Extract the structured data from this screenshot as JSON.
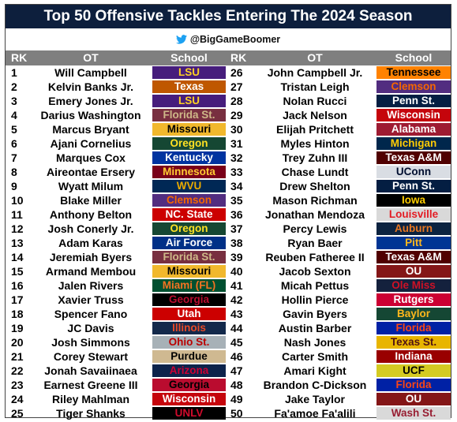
{
  "title": "Top 50 Offensive Tackles Entering The 2024 Season",
  "handle": "@BigGameBoomer",
  "headers": {
    "rank": "RK",
    "player": "OT",
    "school": "School"
  },
  "left": [
    {
      "rank": "1",
      "name": "Will Campbell",
      "school": "LSU",
      "bg": "#461D7C",
      "fg": "#FDD023"
    },
    {
      "rank": "2",
      "name": "Kelvin Banks Jr.",
      "school": "Texas",
      "bg": "#BF5700",
      "fg": "#FFFFFF"
    },
    {
      "rank": "3",
      "name": "Emery Jones Jr.",
      "school": "LSU",
      "bg": "#461D7C",
      "fg": "#FDD023"
    },
    {
      "rank": "4",
      "name": "Darius Washington",
      "school": "Florida St.",
      "bg": "#782F40",
      "fg": "#CEB888"
    },
    {
      "rank": "5",
      "name": "Marcus Bryant",
      "school": "Missouri",
      "bg": "#F1B82D",
      "fg": "#000000"
    },
    {
      "rank": "6",
      "name": "Ajani Cornelius",
      "school": "Oregon",
      "bg": "#154733",
      "fg": "#FEE123"
    },
    {
      "rank": "7",
      "name": "Marques Cox",
      "school": "Kentucky",
      "bg": "#0033A0",
      "fg": "#FFFFFF"
    },
    {
      "rank": "8",
      "name": "Aireontae Ersery",
      "school": "Minnesota",
      "bg": "#7A0019",
      "fg": "#FFCC33"
    },
    {
      "rank": "9",
      "name": "Wyatt Milum",
      "school": "WVU",
      "bg": "#002855",
      "fg": "#EAAA00"
    },
    {
      "rank": "10",
      "name": "Blake Miller",
      "school": "Clemson",
      "bg": "#522D80",
      "fg": "#F56600"
    },
    {
      "rank": "11",
      "name": "Anthony Belton",
      "school": "NC. State",
      "bg": "#CC0000",
      "fg": "#FFFFFF"
    },
    {
      "rank": "12",
      "name": "Josh Conerly Jr.",
      "school": "Oregon",
      "bg": "#154733",
      "fg": "#FEE123"
    },
    {
      "rank": "13",
      "name": "Adam Karas",
      "school": "Air Force",
      "bg": "#003087",
      "fg": "#FFFFFF"
    },
    {
      "rank": "14",
      "name": "Jeremiah Byers",
      "school": "Florida St.",
      "bg": "#782F40",
      "fg": "#CEB888"
    },
    {
      "rank": "15",
      "name": "Armand Membou",
      "school": "Missouri",
      "bg": "#F1B82D",
      "fg": "#000000"
    },
    {
      "rank": "16",
      "name": "Jalen Rivers",
      "school": "Miami (FL)",
      "bg": "#005030",
      "fg": "#F47321"
    },
    {
      "rank": "17",
      "name": "Xavier Truss",
      "school": "Georgia",
      "bg": "#000000",
      "fg": "#BA0C2F"
    },
    {
      "rank": "18",
      "name": "Spencer Fano",
      "school": "Utah",
      "bg": "#CC0000",
      "fg": "#FFFFFF"
    },
    {
      "rank": "19",
      "name": "JC Davis",
      "school": "Illinois",
      "bg": "#13294B",
      "fg": "#E84A27"
    },
    {
      "rank": "20",
      "name": "Josh Simmons",
      "school": "Ohio St.",
      "bg": "#A7B1B7",
      "fg": "#BB0000"
    },
    {
      "rank": "21",
      "name": "Corey Stewart",
      "school": "Purdue",
      "bg": "#CFB991",
      "fg": "#000000"
    },
    {
      "rank": "22",
      "name": "Jonah Savaiinaea",
      "school": "Arizona",
      "bg": "#0C234B",
      "fg": "#CC0033"
    },
    {
      "rank": "23",
      "name": "Earnest Greene III",
      "school": "Georgia",
      "bg": "#BA0C2F",
      "fg": "#000000"
    },
    {
      "rank": "24",
      "name": "Riley Mahlman",
      "school": "Wisconsin",
      "bg": "#C5050C",
      "fg": "#FFFFFF"
    },
    {
      "rank": "25",
      "name": "Tiger Shanks",
      "school": "UNLV",
      "bg": "#000000",
      "fg": "#CF0A2C"
    }
  ],
  "right": [
    {
      "rank": "26",
      "name": "John Campbell Jr.",
      "school": "Tennessee",
      "bg": "#FF8200",
      "fg": "#000000"
    },
    {
      "rank": "27",
      "name": "Tristan Leigh",
      "school": "Clemson",
      "bg": "#522D80",
      "fg": "#F56600"
    },
    {
      "rank": "28",
      "name": "Nolan Rucci",
      "school": "Penn St.",
      "bg": "#041E42",
      "fg": "#FFFFFF"
    },
    {
      "rank": "29",
      "name": "Jack Nelson",
      "school": "Wisconsin",
      "bg": "#C5050C",
      "fg": "#FFFFFF"
    },
    {
      "rank": "30",
      "name": "Elijah Pritchett",
      "school": "Alabama",
      "bg": "#9E1B32",
      "fg": "#FFFFFF"
    },
    {
      "rank": "31",
      "name": "Myles Hinton",
      "school": "Michigan",
      "bg": "#00274C",
      "fg": "#FFCB05"
    },
    {
      "rank": "32",
      "name": "Trey Zuhn III",
      "school": "Texas A&M",
      "bg": "#500000",
      "fg": "#FFFFFF"
    },
    {
      "rank": "33",
      "name": "Chase Lundt",
      "school": "UConn",
      "bg": "#D9DDE3",
      "fg": "#000E2F"
    },
    {
      "rank": "34",
      "name": "Drew Shelton",
      "school": "Penn St.",
      "bg": "#041E42",
      "fg": "#FFFFFF"
    },
    {
      "rank": "35",
      "name": "Mason Richman",
      "school": "Iowa",
      "bg": "#000000",
      "fg": "#FFCD00"
    },
    {
      "rank": "36",
      "name": "Jonathan Mendoza",
      "school": "Louisville",
      "bg": "#D9D9D9",
      "fg": "#E31B23"
    },
    {
      "rank": "37",
      "name": "Percy Lewis",
      "school": "Auburn",
      "bg": "#0C2340",
      "fg": "#E87722"
    },
    {
      "rank": "38",
      "name": "Ryan Baer",
      "school": "Pitt",
      "bg": "#003594",
      "fg": "#FFB81C"
    },
    {
      "rank": "39",
      "name": "Reuben Fatheree II",
      "school": "Texas A&M",
      "bg": "#500000",
      "fg": "#FFFFFF"
    },
    {
      "rank": "40",
      "name": "Jacob Sexton",
      "school": "OU",
      "bg": "#841617",
      "fg": "#FFFFFF"
    },
    {
      "rank": "41",
      "name": "Micah Pettus",
      "school": "Ole Miss",
      "bg": "#14213D",
      "fg": "#CE1126"
    },
    {
      "rank": "42",
      "name": "Hollin Pierce",
      "school": "Rutgers",
      "bg": "#CC0033",
      "fg": "#FFFFFF"
    },
    {
      "rank": "43",
      "name": "Gavin Byers",
      "school": "Baylor",
      "bg": "#154734",
      "fg": "#FFB81C"
    },
    {
      "rank": "44",
      "name": "Austin Barber",
      "school": "Florida",
      "bg": "#0021A5",
      "fg": "#FA4616"
    },
    {
      "rank": "45",
      "name": "Nash Jones",
      "school": "Texas St.",
      "bg": "#E8B500",
      "fg": "#501214"
    },
    {
      "rank": "46",
      "name": "Carter Smith",
      "school": "Indiana",
      "bg": "#990000",
      "fg": "#FFFFFF"
    },
    {
      "rank": "47",
      "name": "Amari Kight",
      "school": "UCF",
      "bg": "#D4CB22",
      "fg": "#000000"
    },
    {
      "rank": "48",
      "name": "Brandon C-Dickson",
      "school": "Florida",
      "bg": "#0021A5",
      "fg": "#FA4616"
    },
    {
      "rank": "49",
      "name": "Jake Taylor",
      "school": "OU",
      "bg": "#841617",
      "fg": "#FFFFFF"
    },
    {
      "rank": "50",
      "name": "Fa'amoe Fa'alili",
      "school": "Wash St.",
      "bg": "#D9D9D9",
      "fg": "#981E32"
    }
  ],
  "icons": {
    "twitter": "twitter-bird-icon"
  },
  "colors": {
    "title_bg": "#0d1f3d",
    "header_bg": "#7f7f7f",
    "twitter_blue": "#1DA1F2"
  }
}
